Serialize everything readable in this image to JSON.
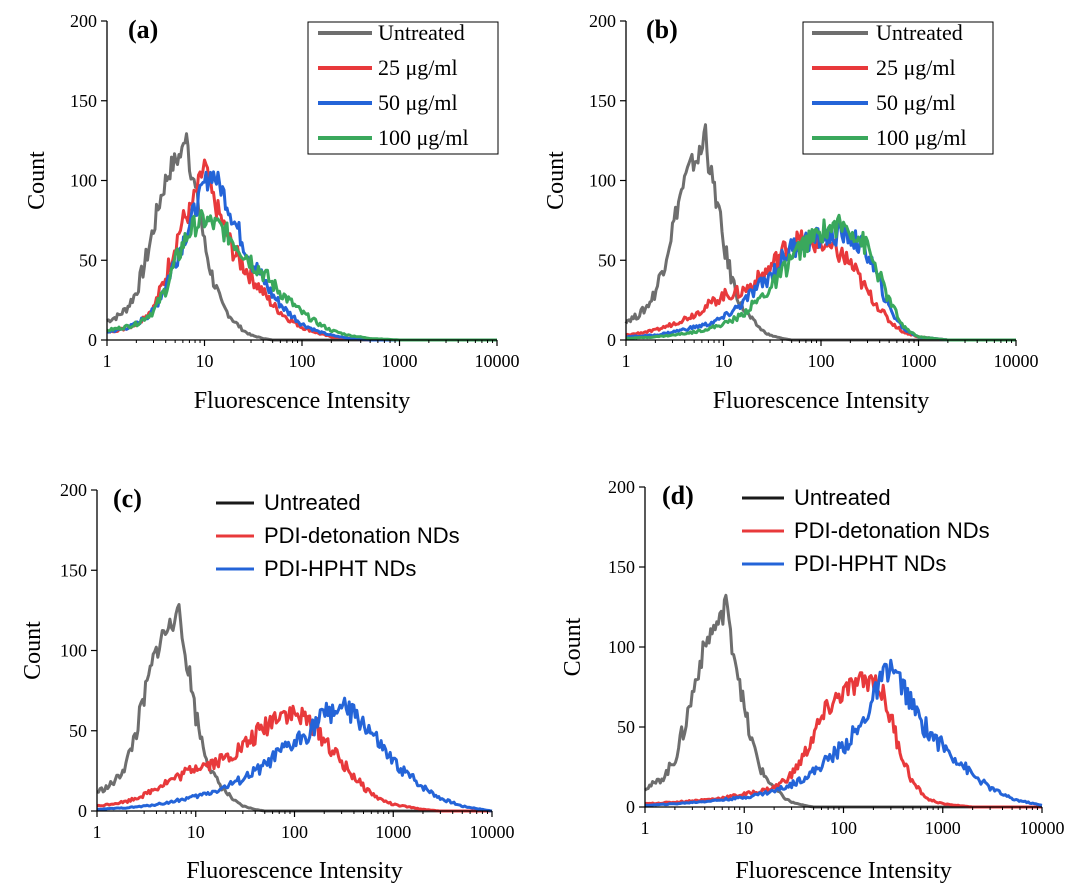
{
  "colors": {
    "untreated": "#6e6e6e",
    "untreated_legend": "#1a1a1a",
    "red": "#e8393b",
    "blue": "#2464d8",
    "green": "#3aa85c",
    "axis": "#000000"
  },
  "chart_data": [
    {
      "type": "line",
      "panel_label": "(a)",
      "xlabel": "Fluorescence Intensity",
      "ylabel": "Count",
      "x_scale": "log",
      "xlim": [
        1,
        10000
      ],
      "ylim": [
        0,
        200
      ],
      "x_ticks": [
        "1",
        "10",
        "100",
        "1000",
        "10000"
      ],
      "y_ticks": [
        "0",
        "50",
        "100",
        "150",
        "200"
      ],
      "grid": false,
      "legend": "top-right, boxed",
      "series": [
        {
          "name": "Untreated",
          "color_key": "untreated",
          "legend_color_key": "untreated",
          "x": [
            1,
            1.3,
            1.6,
            2,
            2.5,
            3,
            3.5,
            4,
            4.5,
            5,
            5.5,
            6,
            6.5,
            7,
            8,
            9,
            10,
            12,
            15,
            20,
            25,
            30,
            40,
            50,
            70,
            100,
            200,
            10000
          ],
          "y": [
            12,
            15,
            20,
            30,
            50,
            70,
            88,
            100,
            108,
            112,
            115,
            118,
            135,
            112,
            95,
            80,
            60,
            40,
            22,
            12,
            6,
            3,
            1,
            0,
            0,
            0,
            0,
            0
          ]
        },
        {
          "name": "25 μg/ml",
          "color_key": "red",
          "legend_color_key": "red",
          "x": [
            1,
            1.5,
            2,
            3,
            4,
            5,
            6,
            7,
            8,
            9,
            10,
            12,
            15,
            20,
            30,
            40,
            50,
            70,
            100,
            150,
            200,
            300,
            500,
            1000,
            10000
          ],
          "y": [
            5,
            7,
            10,
            20,
            40,
            60,
            75,
            80,
            90,
            100,
            110,
            90,
            75,
            55,
            40,
            30,
            22,
            14,
            8,
            4,
            2,
            1,
            0,
            0,
            0
          ]
        },
        {
          "name": "50 μg/ml",
          "color_key": "blue",
          "legend_color_key": "blue",
          "x": [
            1,
            1.5,
            2,
            3,
            4,
            5,
            6,
            7,
            8,
            9,
            10,
            12,
            15,
            20,
            30,
            40,
            50,
            70,
            100,
            150,
            200,
            300,
            500,
            1000,
            10000
          ],
          "y": [
            5,
            7,
            10,
            18,
            35,
            50,
            62,
            72,
            82,
            90,
            98,
            105,
            95,
            75,
            50,
            38,
            28,
            18,
            10,
            5,
            3,
            1,
            0,
            0,
            0
          ]
        },
        {
          "name": "100 μg/ml",
          "color_key": "green",
          "legend_color_key": "green",
          "x": [
            1,
            1.5,
            2,
            3,
            4,
            5,
            6,
            7,
            8,
            9,
            10,
            12,
            15,
            20,
            30,
            40,
            50,
            70,
            100,
            150,
            200,
            300,
            500,
            1000,
            10000
          ],
          "y": [
            6,
            8,
            10,
            18,
            32,
            48,
            60,
            68,
            72,
            74,
            75,
            73,
            70,
            62,
            50,
            42,
            35,
            26,
            17,
            10,
            6,
            3,
            1,
            0,
            0
          ]
        }
      ]
    },
    {
      "type": "line",
      "panel_label": "(b)",
      "xlabel": "Fluorescence Intensity",
      "ylabel": "Count",
      "x_scale": "log",
      "xlim": [
        1,
        10000
      ],
      "ylim": [
        0,
        200
      ],
      "x_ticks": [
        "1",
        "10",
        "100",
        "1000",
        "10000"
      ],
      "y_ticks": [
        "0",
        "50",
        "100",
        "150",
        "200"
      ],
      "grid": false,
      "legend": "top-right, boxed",
      "series": [
        {
          "name": "Untreated",
          "color_key": "untreated",
          "legend_color_key": "untreated",
          "x": [
            1,
            1.3,
            1.6,
            2,
            2.5,
            3,
            3.5,
            4,
            4.5,
            5,
            5.5,
            6,
            6.5,
            7,
            8,
            9,
            10,
            12,
            15,
            20,
            25,
            30,
            40,
            50,
            70,
            100,
            200,
            10000
          ],
          "y": [
            12,
            15,
            20,
            30,
            50,
            70,
            88,
            100,
            108,
            112,
            115,
            118,
            135,
            112,
            95,
            80,
            60,
            40,
            22,
            12,
            6,
            3,
            1,
            0,
            0,
            0,
            0,
            0
          ]
        },
        {
          "name": "25 μg/ml",
          "color_key": "red",
          "legend_color_key": "red",
          "x": [
            1,
            2,
            3,
            5,
            7,
            10,
            15,
            20,
            30,
            40,
            50,
            70,
            100,
            150,
            200,
            300,
            500,
            700,
            1000,
            2000,
            10000
          ],
          "y": [
            3,
            6,
            10,
            16,
            22,
            28,
            30,
            35,
            45,
            55,
            62,
            62,
            60,
            55,
            48,
            30,
            12,
            5,
            2,
            0,
            0
          ]
        },
        {
          "name": "50 μg/ml",
          "color_key": "blue",
          "legend_color_key": "blue",
          "x": [
            1,
            2,
            3,
            5,
            7,
            10,
            15,
            20,
            30,
            40,
            50,
            70,
            100,
            150,
            200,
            300,
            500,
            700,
            1000,
            2000,
            10000
          ],
          "y": [
            2,
            3,
            5,
            8,
            10,
            14,
            22,
            30,
            40,
            50,
            58,
            62,
            64,
            66,
            65,
            55,
            20,
            7,
            2,
            0,
            0
          ]
        },
        {
          "name": "100 μg/ml",
          "color_key": "green",
          "legend_color_key": "green",
          "x": [
            1,
            2,
            3,
            5,
            7,
            10,
            15,
            20,
            30,
            40,
            50,
            70,
            100,
            150,
            200,
            300,
            500,
            700,
            1000,
            2000,
            10000
          ],
          "y": [
            1,
            2,
            3,
            5,
            7,
            10,
            15,
            22,
            32,
            42,
            52,
            60,
            68,
            72,
            70,
            58,
            25,
            8,
            2,
            0,
            0
          ]
        }
      ]
    },
    {
      "type": "line",
      "panel_label": "(c)",
      "xlabel": "Fluorescence Intensity",
      "ylabel": "Count",
      "x_scale": "log",
      "xlim": [
        1,
        10000
      ],
      "ylim": [
        0,
        200
      ],
      "x_ticks": [
        "1",
        "10",
        "100",
        "1000",
        "10000"
      ],
      "y_ticks": [
        "0",
        "50",
        "100",
        "150",
        "200"
      ],
      "grid": false,
      "legend": "top-right, unboxed",
      "series": [
        {
          "name": "Untreated",
          "color_key": "untreated",
          "legend_color_key": "untreated_legend",
          "x": [
            1,
            1.3,
            1.6,
            2,
            2.5,
            3,
            3.5,
            4,
            4.5,
            5,
            5.5,
            6,
            6.5,
            7,
            8,
            9,
            10,
            12,
            15,
            20,
            25,
            30,
            40,
            50,
            70,
            100,
            200,
            10000
          ],
          "y": [
            12,
            15,
            20,
            30,
            50,
            70,
            88,
            100,
            108,
            112,
            115,
            118,
            135,
            112,
            95,
            80,
            60,
            40,
            22,
            12,
            6,
            3,
            1,
            0,
            0,
            0,
            0,
            0
          ]
        },
        {
          "name": "PDI-detonation NDs",
          "color_key": "red",
          "legend_color_key": "red",
          "x": [
            1,
            2,
            3,
            5,
            7,
            10,
            15,
            20,
            30,
            50,
            70,
            100,
            150,
            200,
            300,
            500,
            700,
            1000,
            2000,
            3000,
            10000
          ],
          "y": [
            3,
            6,
            10,
            18,
            22,
            28,
            30,
            33,
            40,
            52,
            62,
            60,
            55,
            45,
            30,
            15,
            8,
            4,
            1,
            0,
            0
          ]
        },
        {
          "name": "PDI-HPHT NDs",
          "color_key": "blue",
          "legend_color_key": "blue",
          "x": [
            1,
            2,
            3,
            5,
            7,
            10,
            15,
            20,
            30,
            50,
            70,
            100,
            150,
            200,
            300,
            500,
            700,
            1000,
            2000,
            3000,
            5000,
            10000
          ],
          "y": [
            1,
            2,
            3,
            5,
            7,
            9,
            12,
            15,
            20,
            28,
            36,
            42,
            52,
            60,
            65,
            55,
            42,
            30,
            15,
            8,
            3,
            0
          ]
        }
      ]
    },
    {
      "type": "line",
      "panel_label": "(d)",
      "xlabel": "Fluorescence Intensity",
      "ylabel": "Count",
      "x_scale": "log",
      "xlim": [
        1,
        10000
      ],
      "ylim": [
        0,
        200
      ],
      "x_ticks": [
        "1",
        "10",
        "100",
        "1000",
        "10000"
      ],
      "y_ticks": [
        "0",
        "50",
        "100",
        "150",
        "200"
      ],
      "grid": false,
      "legend": "top-right, unboxed",
      "series": [
        {
          "name": "Untreated",
          "color_key": "untreated",
          "legend_color_key": "untreated_legend",
          "x": [
            1,
            1.3,
            1.6,
            2,
            2.5,
            3,
            3.5,
            4,
            4.5,
            5,
            5.5,
            6,
            6.5,
            7,
            8,
            9,
            10,
            12,
            15,
            20,
            25,
            30,
            40,
            50,
            70,
            100,
            200,
            10000
          ],
          "y": [
            12,
            15,
            20,
            30,
            50,
            70,
            88,
            100,
            108,
            112,
            115,
            118,
            135,
            112,
            95,
            80,
            60,
            40,
            22,
            12,
            6,
            3,
            1,
            0,
            0,
            0,
            0,
            0
          ]
        },
        {
          "name": "PDI-detonation NDs",
          "color_key": "red",
          "legend_color_key": "red",
          "x": [
            1,
            2,
            5,
            10,
            15,
            20,
            30,
            40,
            50,
            70,
            100,
            150,
            200,
            250,
            300,
            400,
            500,
            700,
            1000,
            2000,
            10000
          ],
          "y": [
            2,
            3,
            5,
            8,
            10,
            12,
            20,
            32,
            45,
            62,
            72,
            78,
            80,
            70,
            55,
            30,
            15,
            5,
            2,
            0,
            0
          ]
        },
        {
          "name": "PDI-HPHT NDs",
          "color_key": "blue",
          "legend_color_key": "blue",
          "x": [
            1,
            2,
            5,
            10,
            20,
            30,
            50,
            70,
            100,
            150,
            200,
            250,
            300,
            400,
            500,
            700,
            1000,
            1500,
            2000,
            3000,
            5000,
            10000
          ],
          "y": [
            1,
            2,
            4,
            6,
            10,
            14,
            22,
            30,
            38,
            50,
            68,
            82,
            88,
            75,
            62,
            48,
            38,
            28,
            20,
            12,
            5,
            1
          ]
        }
      ]
    }
  ]
}
